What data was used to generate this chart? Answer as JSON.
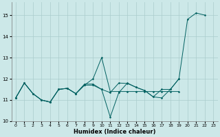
{
  "xlabel": "Humidex (Indice chaleur)",
  "bg_color": "#cce8e8",
  "grid_color": "#aacccc",
  "line_color": "#006060",
  "xlim": [
    -0.5,
    23.5
  ],
  "ylim": [
    10.0,
    15.6
  ],
  "yticks": [
    10,
    11,
    12,
    13,
    14,
    15
  ],
  "xticks": [
    0,
    1,
    2,
    3,
    4,
    5,
    6,
    7,
    8,
    9,
    10,
    11,
    12,
    13,
    14,
    15,
    16,
    17,
    18,
    19,
    20,
    21,
    22,
    23
  ],
  "series": [
    [
      11.1,
      11.8,
      11.3,
      11.0,
      10.9,
      11.5,
      11.55,
      11.3,
      11.7,
      11.7,
      11.5,
      10.2,
      11.35,
      11.8,
      11.6,
      11.45,
      11.15,
      11.1,
      11.5,
      12.0,
      14.8,
      15.1,
      15.0,
      null
    ],
    [
      11.1,
      11.8,
      11.3,
      11.0,
      10.9,
      11.5,
      11.55,
      11.3,
      11.7,
      12.0,
      13.0,
      11.4,
      11.4,
      11.4,
      11.4,
      11.4,
      11.4,
      11.4,
      11.4,
      11.4,
      null,
      null,
      null,
      null
    ],
    [
      11.1,
      11.8,
      11.3,
      11.0,
      10.9,
      11.5,
      11.55,
      11.3,
      11.75,
      11.75,
      11.5,
      11.35,
      11.8,
      11.78,
      11.6,
      11.45,
      11.15,
      11.5,
      11.5,
      12.0,
      null,
      null,
      null,
      null
    ]
  ]
}
